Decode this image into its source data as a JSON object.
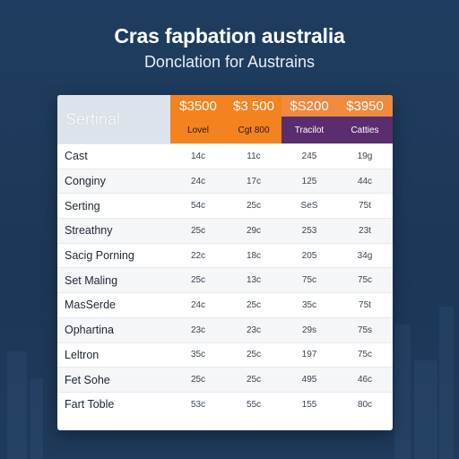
{
  "title": "Cras fapbation australia",
  "subtitle": "Donclation for Austrains",
  "table": {
    "corner_label": "Sertinal",
    "columns": [
      {
        "price": "$3500",
        "tag": "Lovel",
        "group": "orange"
      },
      {
        "price": "$3 500",
        "tag": "Cgt 800",
        "group": "orange"
      },
      {
        "price": "$S200",
        "tag": "Tracilot",
        "group": "purple"
      },
      {
        "price": "$3950",
        "tag": "Catties",
        "group": "purple"
      }
    ],
    "rows": [
      {
        "name": "Cast",
        "values": [
          "14c",
          "11c",
          "245",
          "19g"
        ]
      },
      {
        "name": "Conginy",
        "values": [
          "24c",
          "17c",
          "125",
          "44c"
        ]
      },
      {
        "name": "Serting",
        "values": [
          "54c",
          "25c",
          "SeS",
          "75t"
        ]
      },
      {
        "name": "Streathny",
        "values": [
          "25c",
          "29c",
          "253",
          "23t"
        ]
      },
      {
        "name": "Sacig Porning",
        "values": [
          "22c",
          "18c",
          "205",
          "34g"
        ]
      },
      {
        "name": "Set Maling",
        "values": [
          "25c",
          "13c",
          "75c",
          "75c"
        ]
      },
      {
        "name": "MasSerde",
        "values": [
          "24c",
          "25c",
          "35c",
          "75t"
        ]
      },
      {
        "name": "Ophartina",
        "values": [
          "23c",
          "23c",
          "29s",
          "75s"
        ]
      },
      {
        "name": "Leltron",
        "values": [
          "35c",
          "25c",
          "197",
          "75c"
        ]
      },
      {
        "name": "Fet Sohe",
        "values": [
          "25c",
          "25c",
          "495",
          "46c"
        ]
      },
      {
        "name": "Fart Toble",
        "values": [
          "53c",
          "55c",
          "155",
          "80c"
        ]
      }
    ]
  },
  "colors": {
    "background": "#1e3a5c",
    "header_orange": "#f4831f",
    "header_purple": "#5a2d6e",
    "card": "#ffffff"
  }
}
